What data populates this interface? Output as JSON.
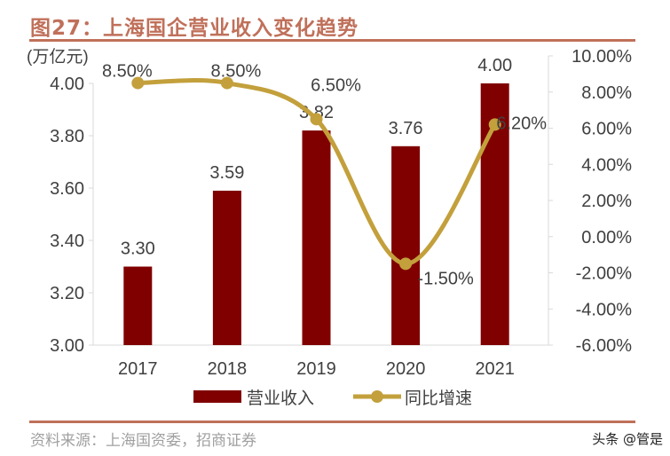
{
  "title": "图27：上海国企营业收入变化趋势",
  "source": "资料来源：上海国资委，招商证券",
  "watermark": "头条 @管是",
  "chart_data": {
    "type": "bar+line",
    "categories": [
      "2017",
      "2018",
      "2019",
      "2020",
      "2021"
    ],
    "left_axis": {
      "unit_label": "(万亿元)",
      "range": [
        3.0,
        4.0
      ],
      "ticks": [
        "3.00",
        "3.20",
        "3.40",
        "3.60",
        "3.80",
        "4.00"
      ]
    },
    "right_axis": {
      "range": [
        -6,
        10
      ],
      "ticks": [
        "-6.00%",
        "-4.00%",
        "-2.00%",
        "0.00%",
        "2.00%",
        "4.00%",
        "6.00%",
        "8.00%",
        "10.00%"
      ]
    },
    "series": [
      {
        "name": "营业收入",
        "type": "bar",
        "axis": "left",
        "color": "#800000",
        "values": [
          3.3,
          3.59,
          3.82,
          3.76,
          4.0
        ],
        "labels": [
          "3.30",
          "3.59",
          "3.82",
          "3.76",
          "4.00"
        ]
      },
      {
        "name": "同比增速",
        "type": "line",
        "axis": "right",
        "color": "#c3a03c",
        "values": [
          8.5,
          8.5,
          6.5,
          -1.5,
          6.2
        ],
        "labels": [
          "8.50%",
          "8.50%",
          "6.50%",
          "-1.50%",
          "6.20%"
        ]
      }
    ],
    "legend": "bottom",
    "grid": false
  }
}
